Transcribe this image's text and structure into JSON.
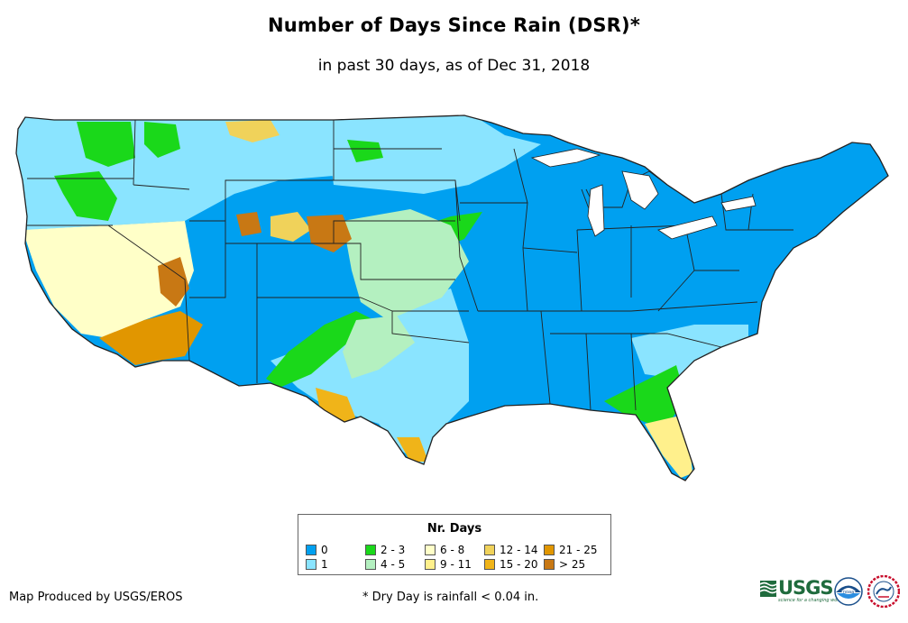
{
  "map": {
    "title": "Number of Days Since Rain (DSR)*",
    "subtitle": "in past 30 days, as of Dec 31, 2018"
  },
  "colors": {
    "c0": "#00a0f0",
    "c1": "#8ae4ff",
    "c23": "#1ad81a",
    "c45": "#b4f0c0",
    "c68": "#ffffc8",
    "c911": "#fff08c",
    "c1214": "#f0d25a",
    "c1520": "#f0b419",
    "c2125": "#e19600",
    "c25": "#c87814",
    "border": "#222222"
  },
  "legend": {
    "title": "Nr. Days",
    "items": [
      {
        "label": "0",
        "color": "#00a0f0"
      },
      {
        "label": "1",
        "color": "#8ae4ff"
      },
      {
        "label": "2 - 3",
        "color": "#1ad81a"
      },
      {
        "label": "4 - 5",
        "color": "#b4f0c0"
      },
      {
        "label": "6 - 8",
        "color": "#ffffc8"
      },
      {
        "label": "9 - 11",
        "color": "#fff08c"
      },
      {
        "label": "12 - 14",
        "color": "#f0d25a"
      },
      {
        "label": "15 - 20",
        "color": "#f0b419"
      },
      {
        "label": "21 - 25",
        "color": "#e19600"
      },
      {
        "label": "> 25",
        "color": "#c87814"
      }
    ]
  },
  "footer": {
    "credit": "Map Produced by USGS/EROS",
    "note": "* Dry Day is rainfall < 0.04 in."
  },
  "logos": {
    "usgs_word": "USGS",
    "usgs_tagline": "science for a changing world",
    "noaa_label": "noaa",
    "nws_icon": "nws-logo-icon"
  }
}
